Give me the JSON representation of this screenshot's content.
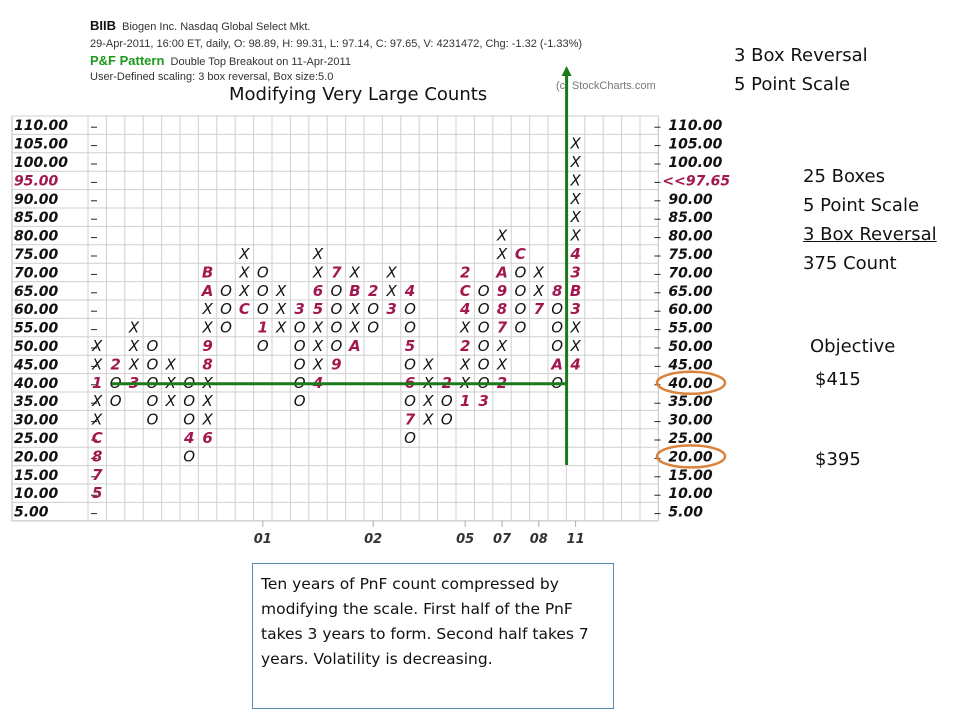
{
  "header": {
    "symbol": "BIIB",
    "company": "Biogen Inc.  Nasdaq Global Select Mkt.",
    "quote": "29-Apr-2011, 16:00 ET, daily, O: 98.89, H: 99.31, L: 97.14, C: 97.65, V: 4231472, Chg: -1.32 (-1.33%)",
    "pattern_label": "P&F Pattern",
    "pattern_text": "Double Top Breakout on 11-Apr-2011",
    "scaling": "User-Defined scaling: 3 box reversal, Box size:5.0",
    "watermark": "(c) StockCharts.com"
  },
  "slide_title": "Modifying Very Large Counts",
  "notes": {
    "top": [
      "3 Box Reversal",
      "5 Point Scale"
    ],
    "count": [
      "25 Boxes",
      "5 Point Scale",
      "3 Box Reversal",
      "375 Count"
    ],
    "objective_label": "Objective",
    "objective_1": "$415",
    "objective_2": "$395"
  },
  "callout": "Ten years of PnF count compressed by modifying the scale. First half of the PnF takes 3 years to form. Second half takes 7 years. Volatility is decreasing.",
  "chart_data": {
    "type": "point-and-figure",
    "box_size": 5,
    "reversal": 3,
    "y_ticks_left": [
      "110.00",
      "105.00",
      "100.00",
      "95.00",
      "90.00",
      "85.00",
      "80.00",
      "75.00",
      "70.00",
      "65.00",
      "60.00",
      "55.00",
      "50.00",
      "45.00",
      "40.00",
      "35.00",
      "30.00",
      "25.00",
      "20.00",
      "15.00",
      "10.00",
      "5.00"
    ],
    "y_ticks_right": [
      "110.00",
      "105.00",
      "100.00",
      "<<97.65",
      "90.00",
      "85.00",
      "80.00",
      "75.00",
      "70.00",
      "65.00",
      "60.00",
      "55.00",
      "50.00",
      "45.00",
      "40.00",
      "35.00",
      "30.00",
      "25.00",
      "20.00",
      "15.00",
      "10.00",
      "5.00"
    ],
    "x_labels": [
      {
        "col": 9,
        "text": "01"
      },
      {
        "col": 15,
        "text": "02"
      },
      {
        "col": 20,
        "text": "05"
      },
      {
        "col": 22,
        "text": "07"
      },
      {
        "col": 24,
        "text": "08"
      },
      {
        "col": 26,
        "text": "11"
      }
    ],
    "columns": [
      {
        "top": 50,
        "marks": "XX1XXC875"
      },
      {
        "top": 45,
        "marks": "2OO"
      },
      {
        "top": 55,
        "marks": "XXX3"
      },
      {
        "top": 50,
        "marks": "OOOOO"
      },
      {
        "top": 45,
        "marks": "XXX"
      },
      {
        "top": 40,
        "marks": "OOO4O"
      },
      {
        "top": 70,
        "marks": "BAXX98XXX6"
      },
      {
        "top": 65,
        "marks": "OOO"
      },
      {
        "top": 75,
        "marks": "XXXC"
      },
      {
        "top": 70,
        "marks": "OOO1O"
      },
      {
        "top": 65,
        "marks": "XXX"
      },
      {
        "top": 60,
        "marks": "3OOOOO"
      },
      {
        "top": 75,
        "marks": "XX65XXX4"
      },
      {
        "top": 70,
        "marks": "7OOOO9"
      },
      {
        "top": 70,
        "marks": "XBXXA"
      },
      {
        "top": 65,
        "marks": "2OO"
      },
      {
        "top": 70,
        "marks": "XX3"
      },
      {
        "top": 65,
        "marks": "4OO5O6O7O"
      },
      {
        "top": 45,
        "marks": "XXXX"
      },
      {
        "top": 40,
        "marks": "2OO"
      },
      {
        "top": 70,
        "marks": "2C4X2XX1"
      },
      {
        "top": 65,
        "marks": "OOOOOO3"
      },
      {
        "top": 80,
        "marks": "XXA987XX2"
      },
      {
        "top": 75,
        "marks": "COOOO"
      },
      {
        "top": 70,
        "marks": "XX7"
      },
      {
        "top": 65,
        "marks": "8OOOAO"
      },
      {
        "top": 105,
        "marks": "XXXXXX43B3XX4"
      }
    ],
    "count_line_price": 40,
    "highlighted_prices": [
      40,
      20
    ],
    "colors": {
      "month_marks": "#a3174f",
      "count_lines": "#1a7a1a",
      "highlight": "#d9823b",
      "price_red": "#a3174f"
    }
  }
}
